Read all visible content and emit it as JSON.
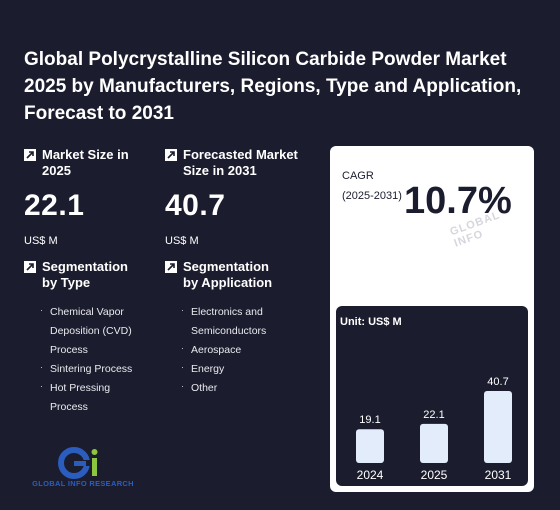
{
  "title": "Global Polycrystalline Silicon Carbide Powder Market 2025 by Manufacturers, Regions, Type and Application, Forecast to 2031",
  "market_size": {
    "label": "Market Size in 2025",
    "value": "22.1",
    "unit": "US$ M"
  },
  "forecast_size": {
    "label": "Forecasted Market Size in 2031",
    "value": "40.7",
    "unit": "US$ M"
  },
  "cagr": {
    "label": "CAGR (2025-2031)",
    "value": "10.7%"
  },
  "segmentation_type": {
    "label": "Segmentation by Type",
    "items": [
      "Chemical Vapor Deposition (CVD) Process",
      "Sintering Process",
      "Hot Pressing Process"
    ]
  },
  "segmentation_application": {
    "label": "Segmentation by Application",
    "items": [
      "Electronics and Semiconductors",
      "Aerospace",
      "Energy",
      "Other"
    ]
  },
  "logo": {
    "text": "GLOBAL INFO RESEARCH"
  },
  "watermark": "GLOBAL INFO",
  "icons": {
    "metric": "arrow-up-right-icon"
  },
  "colors": {
    "background": "#1b1d2e",
    "bar": "#e3ecfa",
    "logo_blue": "#2b5dbf",
    "logo_green": "#8dc63f"
  },
  "chart_data": {
    "type": "bar",
    "unit_label": "Unit: US$ M",
    "categories": [
      "2024",
      "2025",
      "2031"
    ],
    "values": [
      19.1,
      22.1,
      40.7
    ],
    "ylim": [
      0,
      40.7
    ]
  }
}
